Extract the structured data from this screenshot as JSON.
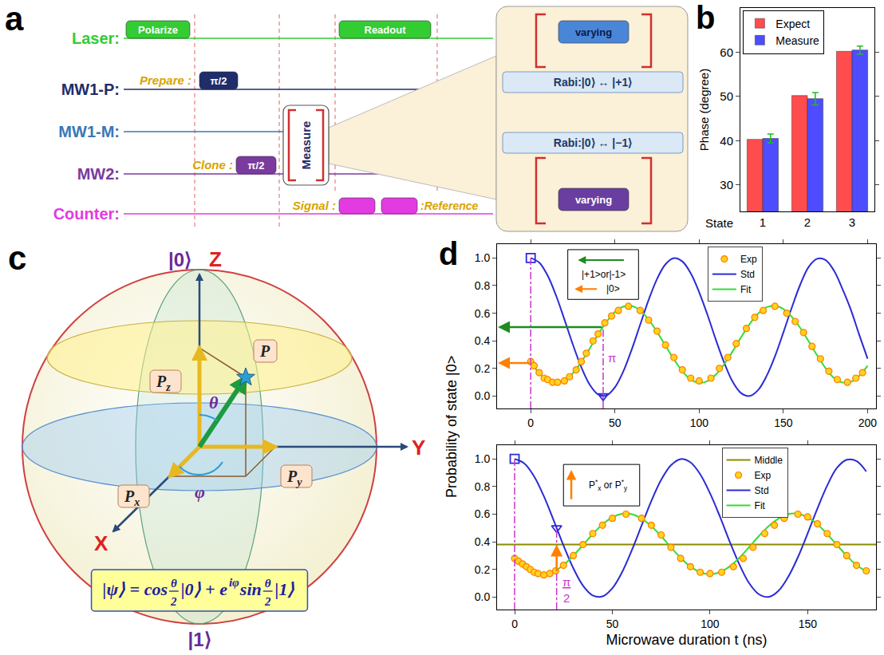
{
  "panel_a": {
    "label": "a",
    "rows": [
      {
        "name": "Laser:",
        "color": "#33cc33"
      },
      {
        "name": "MW1-P:",
        "color": "#1f2d6b"
      },
      {
        "name": "MW1-M:",
        "color": "#3a78b5"
      },
      {
        "name": "MW2:",
        "color": "#7b3a9e"
      },
      {
        "name": "Counter:",
        "color": "#e23be2"
      }
    ],
    "polarize": "Polarize",
    "readout": "Readout",
    "prepare": "Prepare :",
    "pi_half": "π/2",
    "clone": "Clone :",
    "measure": "Measure",
    "signal": "Signal :",
    "reference": ":Reference",
    "varying": "varying",
    "rabi_plus": "Rabi:|0⟩ ↔ |+1⟩",
    "rabi_minus": "Rabi:|0⟩ ↔ |−1⟩"
  },
  "panel_c": {
    "label": "c",
    "ket0": "|0⟩",
    "ket1": "|1⟩",
    "axes": {
      "z": "Z",
      "x": "X",
      "y": "Y"
    },
    "theta": "θ",
    "phi": "φ",
    "vectors": {
      "p": {
        "text": "P"
      },
      "pz": {
        "text": "P",
        "sub": "z"
      },
      "px": {
        "text": "P",
        "sub": "x"
      },
      "py": {
        "text": "P",
        "sub": "y"
      }
    },
    "formula": [
      "|ψ⟩ = cos",
      {
        "num": "θ",
        "den": "2"
      },
      "|0⟩ + e",
      {
        "sup": "iφ"
      },
      " sin",
      {
        "num": "θ",
        "den": "2"
      },
      "|1⟩"
    ]
  },
  "chart_data": [
    {
      "label": "b",
      "type": "bar",
      "categories": [
        "1",
        "2",
        "3"
      ],
      "x_label": "State",
      "y_label": "Phase (degree)",
      "series": [
        {
          "name": "Expect",
          "color": "#ff4d4d",
          "values": [
            40.3,
            50.2,
            60.2
          ]
        },
        {
          "name": "Measure",
          "color": "#4d4dff",
          "values": [
            40.5,
            49.5,
            60.5
          ],
          "errors": [
            1.0,
            1.4,
            0.9
          ]
        }
      ],
      "ylim": [
        24,
        70
      ],
      "yticks": [
        30,
        40,
        50,
        60
      ],
      "grid": false,
      "legend": "top left"
    },
    {
      "label": "d",
      "type": "line",
      "y_label": "Probability of state |0>",
      "xlim": [
        -20,
        205
      ],
      "xticks": [
        0,
        50,
        100,
        150,
        200
      ],
      "ylim": [
        -0.09,
        1.1
      ],
      "yticks": [
        {
          "value": 0,
          "label": "0.0"
        },
        0.2,
        0.4,
        0.6,
        0.8,
        {
          "value": 1,
          "label": "1.0"
        }
      ],
      "grid": false,
      "legend": "top",
      "series": [
        {
          "name": "Exp",
          "color": "#ff7f00",
          "marker": "circle",
          "x": [
            0,
            2,
            5,
            8,
            10,
            13,
            16,
            20,
            23,
            27,
            30,
            33,
            37,
            40,
            44,
            48,
            52,
            58,
            65,
            70,
            75,
            80,
            85,
            90,
            95,
            100,
            107,
            112,
            117,
            122,
            128,
            133,
            138,
            145,
            152,
            157,
            162,
            167,
            172,
            177,
            182,
            188,
            193,
            197
          ],
          "values": [
            0.25,
            0.22,
            0.17,
            0.13,
            0.12,
            0.1,
            0.1,
            0.11,
            0.14,
            0.19,
            0.25,
            0.31,
            0.4,
            0.45,
            0.53,
            0.58,
            0.62,
            0.65,
            0.62,
            0.55,
            0.47,
            0.37,
            0.28,
            0.19,
            0.13,
            0.11,
            0.13,
            0.2,
            0.28,
            0.38,
            0.49,
            0.57,
            0.62,
            0.65,
            0.6,
            0.54,
            0.46,
            0.36,
            0.27,
            0.18,
            0.12,
            0.1,
            0.13,
            0.17
          ]
        },
        {
          "name": "Std",
          "color": "#2b2bd6",
          "line_style": "solid",
          "x": [
            0,
            5,
            10,
            15,
            20,
            25,
            30,
            35,
            40,
            45,
            50,
            55,
            60,
            65,
            70,
            75,
            80,
            85,
            90,
            95,
            100,
            105,
            110,
            115,
            120,
            125,
            130,
            135,
            140,
            145,
            150,
            155,
            160,
            165,
            170,
            175,
            180,
            185,
            190,
            195,
            200
          ],
          "values": [
            1,
            0.967,
            0.873,
            0.729,
            0.555,
            0.374,
            0.21,
            0.083,
            0.012,
            0.005,
            0.064,
            0.18,
            0.339,
            0.518,
            0.696,
            0.848,
            0.954,
            0.999,
            0.975,
            0.889,
            0.752,
            0.586,
            0.405,
            0.238,
            0.102,
            0.021,
            0.001,
            0.044,
            0.145,
            0.288,
            0.461,
            0.641,
            0.807,
            0.935,
            0.994,
            0.985,
            0.909,
            0.777,
            0.627,
            0.445,
            0.271
          ]
        },
        {
          "name": "Fit",
          "color": "#33dd33",
          "line_style": "solid",
          "x": [
            0,
            5,
            10,
            15,
            20,
            25,
            30,
            35,
            40,
            45,
            50,
            55,
            60,
            65,
            70,
            75,
            80,
            85,
            90,
            95,
            100,
            105,
            110,
            115,
            120,
            125,
            130,
            135,
            140,
            145,
            150,
            155,
            160,
            165,
            170,
            175,
            180,
            185,
            190,
            195,
            200
          ],
          "values": [
            0.247,
            0.166,
            0.113,
            0.095,
            0.113,
            0.166,
            0.247,
            0.344,
            0.446,
            0.538,
            0.609,
            0.648,
            0.652,
            0.619,
            0.554,
            0.465,
            0.365,
            0.266,
            0.18,
            0.121,
            0.096,
            0.109,
            0.157,
            0.234,
            0.327,
            0.428,
            0.522,
            0.598,
            0.643,
            0.654,
            0.63,
            0.574,
            0.494,
            0.397,
            0.296,
            0.203,
            0.132,
            0.099,
            0.103,
            0.146,
            0.22
          ]
        }
      ],
      "points": [
        {
          "x": 0,
          "y": 1,
          "marker": "square",
          "color": "#2b2bd6"
        },
        {
          "x": 43,
          "y": 0,
          "marker": "triangle",
          "color": "#2b2bd6"
        }
      ],
      "vlines": [
        {
          "x": 0,
          "to": 1
        },
        {
          "x": 43,
          "to": 0.5
        }
      ],
      "vline_label": "π",
      "arrows": [
        {
          "from_x": 43,
          "y": 0.5,
          "color": "#1e8c1e"
        },
        {
          "from_x": 0,
          "y": 0.24,
          "color": "#ff7f00"
        }
      ],
      "box_texts": [
        "|+1>or|-1>",
        "|0>"
      ]
    },
    {
      "type": "line",
      "x_label": "Microwave duration t (ns)",
      "xlim": [
        -9,
        185
      ],
      "xticks": [
        0,
        50,
        100,
        150
      ],
      "ylim": [
        -0.09,
        1.1
      ],
      "yticks": [
        {
          "value": 0,
          "label": "0.0"
        },
        0.2,
        0.4,
        0.6,
        0.8,
        {
          "value": 1,
          "label": "1.0"
        }
      ],
      "grid": false,
      "legend": "top",
      "series": [
        {
          "name": "Middle",
          "type": "hline",
          "color": "#8b8b00",
          "line_style": "solid",
          "values": [
            0.38
          ]
        },
        {
          "name": "Exp",
          "color": "#ff7f00",
          "marker": "circle",
          "x": [
            0,
            2,
            4,
            6,
            8,
            10,
            12,
            15,
            18,
            21,
            25,
            30,
            35,
            40,
            45,
            50,
            57,
            65,
            70,
            75,
            80,
            85,
            90,
            95,
            100,
            106,
            112,
            117,
            122,
            128,
            133,
            138,
            145,
            150,
            155,
            160,
            165,
            170,
            175,
            180
          ],
          "values": [
            0.28,
            0.26,
            0.24,
            0.22,
            0.2,
            0.18,
            0.17,
            0.16,
            0.17,
            0.19,
            0.23,
            0.3,
            0.38,
            0.46,
            0.52,
            0.57,
            0.6,
            0.57,
            0.52,
            0.45,
            0.36,
            0.28,
            0.22,
            0.18,
            0.17,
            0.18,
            0.22,
            0.28,
            0.36,
            0.46,
            0.52,
            0.57,
            0.6,
            0.58,
            0.53,
            0.46,
            0.38,
            0.3,
            0.23,
            0.19
          ]
        },
        {
          "name": "Std",
          "color": "#2b2bd6",
          "line_style": "solid",
          "x": [
            0,
            5,
            10,
            15,
            20,
            25,
            30,
            35,
            40,
            45,
            50,
            55,
            60,
            65,
            70,
            75,
            80,
            85,
            90,
            95,
            100,
            105,
            110,
            115,
            120,
            125,
            130,
            135,
            140,
            145,
            150,
            155,
            160,
            165,
            170,
            175,
            180
          ],
          "values": [
            1,
            0.967,
            0.873,
            0.729,
            0.555,
            0.374,
            0.21,
            0.083,
            0.012,
            0.005,
            0.064,
            0.18,
            0.339,
            0.518,
            0.696,
            0.848,
            0.954,
            0.999,
            0.975,
            0.889,
            0.752,
            0.586,
            0.405,
            0.238,
            0.102,
            0.021,
            0.001,
            0.044,
            0.145,
            0.288,
            0.461,
            0.641,
            0.807,
            0.935,
            0.994,
            0.985,
            0.909
          ]
        },
        {
          "name": "Fit",
          "color": "#33dd33",
          "line_style": "solid",
          "x": [
            0,
            5,
            10,
            15,
            20,
            25,
            30,
            35,
            40,
            45,
            50,
            55,
            60,
            65,
            70,
            75,
            80,
            85,
            90,
            95,
            100,
            105,
            110,
            115,
            120,
            125,
            130,
            135,
            140,
            145,
            150,
            155,
            160,
            165,
            170,
            175,
            180
          ],
          "values": [
            0.271,
            0.211,
            0.174,
            0.166,
            0.186,
            0.232,
            0.299,
            0.377,
            0.456,
            0.526,
            0.577,
            0.603,
            0.6,
            0.568,
            0.513,
            0.441,
            0.361,
            0.284,
            0.221,
            0.18,
            0.165,
            0.18,
            0.221,
            0.284,
            0.361,
            0.441,
            0.513,
            0.568,
            0.6,
            0.603,
            0.577,
            0.526,
            0.456,
            0.377,
            0.299,
            0.232,
            0.186
          ]
        }
      ],
      "points": [
        {
          "x": 0,
          "y": 1,
          "marker": "square",
          "color": "#2b2bd6"
        },
        {
          "x": 21.5,
          "y": 0.5,
          "marker": "triangle",
          "color": "#2b2bd6"
        }
      ],
      "vlines": [
        {
          "x": 0,
          "to": 1
        },
        {
          "x": 21.5,
          "to": 0.5
        }
      ],
      "vline_label": {
        "num": "π",
        "den": "2"
      },
      "arrows": [
        {
          "x": 21.5,
          "from_y": 0.18,
          "to_y": 0.38,
          "color": "#ff7f00"
        }
      ],
      "box_text_parts": [
        {
          "text": "P"
        },
        {
          "sup": "*"
        },
        {
          "sub": "x"
        },
        {
          "text": " or P"
        },
        {
          "sup": "*"
        },
        {
          "sub": "y"
        }
      ]
    }
  ]
}
